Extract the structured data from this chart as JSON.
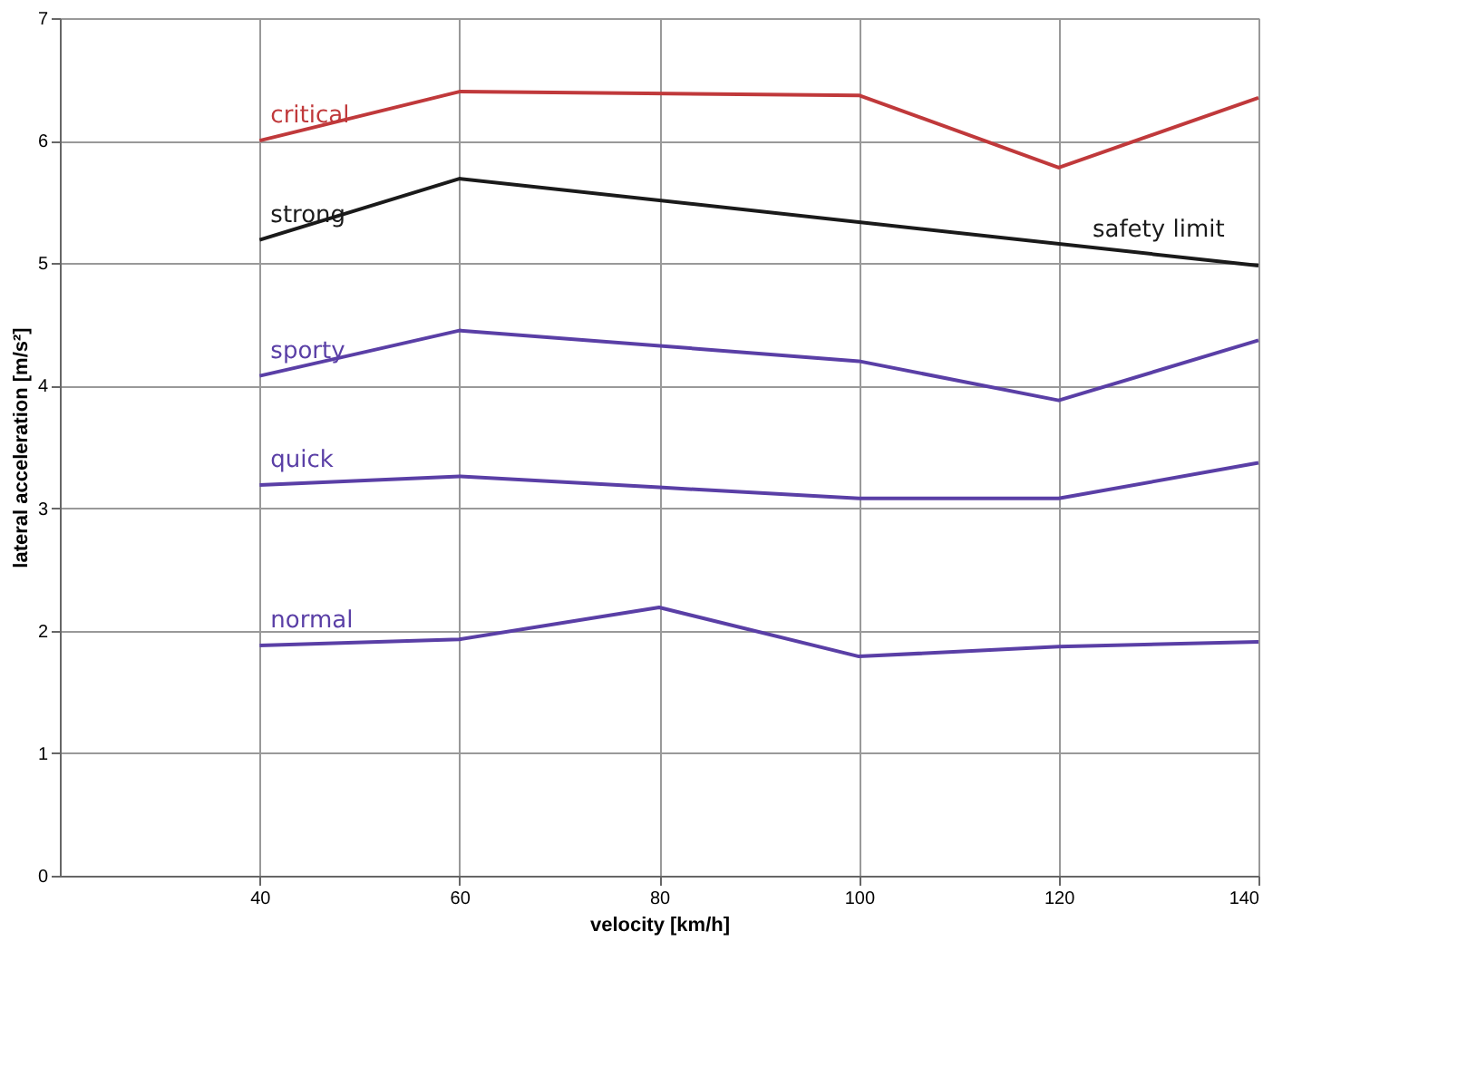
{
  "chart_data": {
    "type": "line",
    "xlabel": "velocity [km/h]",
    "ylabel": "lateral acceleration [m/s²]",
    "xlim": [
      20,
      140
    ],
    "xticks": [
      40,
      60,
      80,
      100,
      120,
      140
    ],
    "ylim": [
      0,
      7
    ],
    "yticks": [
      0,
      1,
      2,
      3,
      4,
      5,
      6,
      7
    ],
    "grid": true,
    "legend": false,
    "marker": "none",
    "line_style": "solid",
    "series": [
      {
        "name": "critical",
        "color": "#c0393b",
        "x": [
          40,
          60,
          100,
          120,
          140
        ],
        "values": [
          6.0,
          6.4,
          6.37,
          5.78,
          6.35
        ]
      },
      {
        "name": "strong",
        "color": "#1a1a1a",
        "x": [
          40,
          60,
          140
        ],
        "values": [
          5.19,
          5.69,
          4.98
        ]
      },
      {
        "name": "sporty",
        "color": "#5a3fa6",
        "x": [
          40,
          60,
          100,
          120,
          140
        ],
        "values": [
          4.08,
          4.45,
          4.2,
          3.88,
          4.37
        ]
      },
      {
        "name": "quick",
        "color": "#5a3fa6",
        "x": [
          40,
          60,
          80,
          100,
          120,
          140
        ],
        "values": [
          3.19,
          3.26,
          3.17,
          3.08,
          3.08,
          3.37
        ]
      },
      {
        "name": "normal",
        "color": "#5a3fa6",
        "x": [
          40,
          60,
          80,
          100,
          120,
          140
        ],
        "values": [
          1.88,
          1.93,
          2.19,
          1.79,
          1.87,
          1.91
        ]
      }
    ],
    "annotations": [
      {
        "text": "safety limit",
        "x": 130,
        "y": 5.07
      }
    ]
  }
}
